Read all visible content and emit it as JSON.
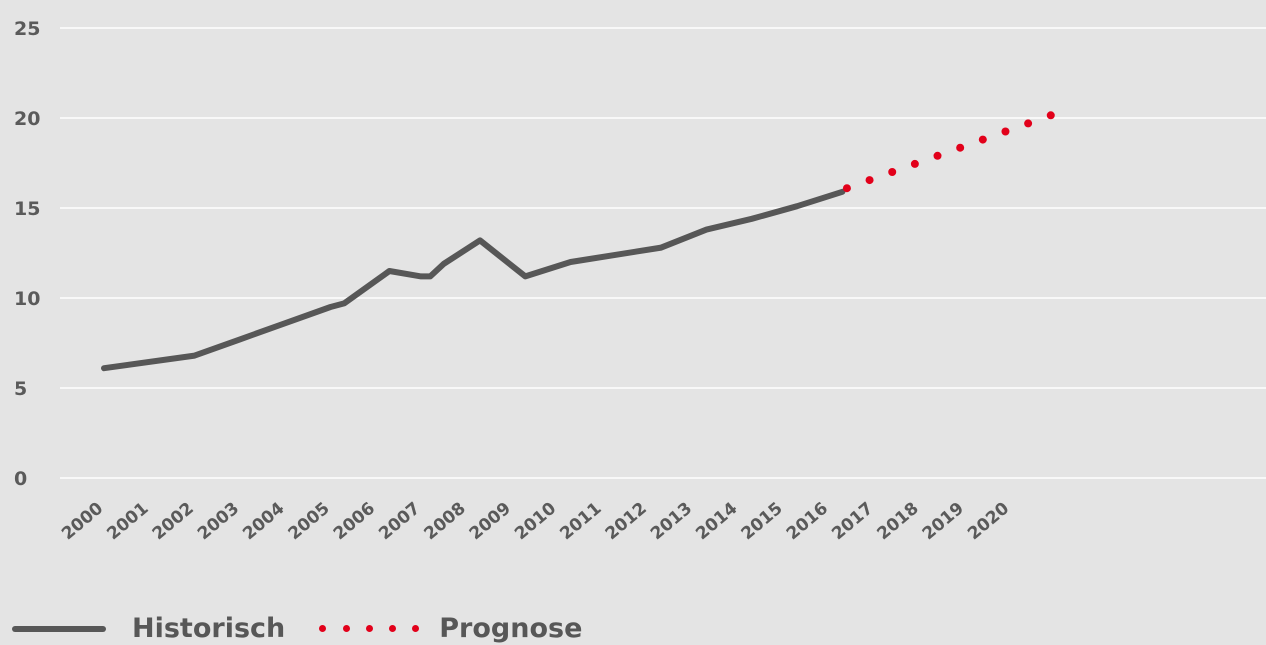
{
  "chart_data": {
    "type": "line",
    "title": "",
    "xlabel": "",
    "ylabel": "",
    "ylim": [
      0,
      25
    ],
    "y_ticks": [
      "0",
      "5",
      "10",
      "15",
      "20",
      "25"
    ],
    "categories": [
      "2000",
      "2001",
      "2002",
      "2003",
      "2004",
      "2005",
      "2006",
      "2007",
      "2008",
      "2009",
      "2010",
      "2011",
      "2012",
      "2013",
      "2014",
      "2015",
      "2016",
      "2017",
      "2018",
      "2019",
      "2020"
    ],
    "grid": true,
    "legend_position": "bottom-left",
    "series": [
      {
        "name": "Historisch",
        "style": "solid",
        "color": "#575757",
        "points": [
          {
            "x": 2000,
            "y": 6.1
          },
          {
            "x": 2002,
            "y": 6.8
          },
          {
            "x": 2003,
            "y": 7.7
          },
          {
            "x": 2004,
            "y": 8.6
          },
          {
            "x": 2005,
            "y": 9.5
          },
          {
            "x": 2005.3,
            "y": 9.7
          },
          {
            "x": 2006.3,
            "y": 11.5
          },
          {
            "x": 2007,
            "y": 11.2
          },
          {
            "x": 2007.2,
            "y": 11.2
          },
          {
            "x": 2007.5,
            "y": 11.9
          },
          {
            "x": 2008.3,
            "y": 13.2
          },
          {
            "x": 2009.3,
            "y": 11.2
          },
          {
            "x": 2010.3,
            "y": 12.0
          },
          {
            "x": 2011.3,
            "y": 12.4
          },
          {
            "x": 2012.3,
            "y": 12.8
          },
          {
            "x": 2013.3,
            "y": 13.8
          },
          {
            "x": 2014.3,
            "y": 14.4
          },
          {
            "x": 2015.3,
            "y": 15.1
          },
          {
            "x": 2016.3,
            "y": 15.9
          }
        ]
      },
      {
        "name": "Prognose",
        "style": "dotted",
        "color": "#e2001a",
        "points": [
          {
            "x": 2016.4,
            "y": 16.1
          },
          {
            "x": 2016.9,
            "y": 16.55
          },
          {
            "x": 2017.4,
            "y": 17.0
          },
          {
            "x": 2017.9,
            "y": 17.45
          },
          {
            "x": 2018.4,
            "y": 17.9
          },
          {
            "x": 2018.9,
            "y": 18.35
          },
          {
            "x": 2019.4,
            "y": 18.8
          },
          {
            "x": 2019.9,
            "y": 19.25
          },
          {
            "x": 2020.4,
            "y": 19.7
          },
          {
            "x": 2020.9,
            "y": 20.15
          }
        ]
      }
    ]
  },
  "legend": {
    "items": [
      {
        "label": "Historisch"
      },
      {
        "label": "Prognose"
      }
    ]
  }
}
